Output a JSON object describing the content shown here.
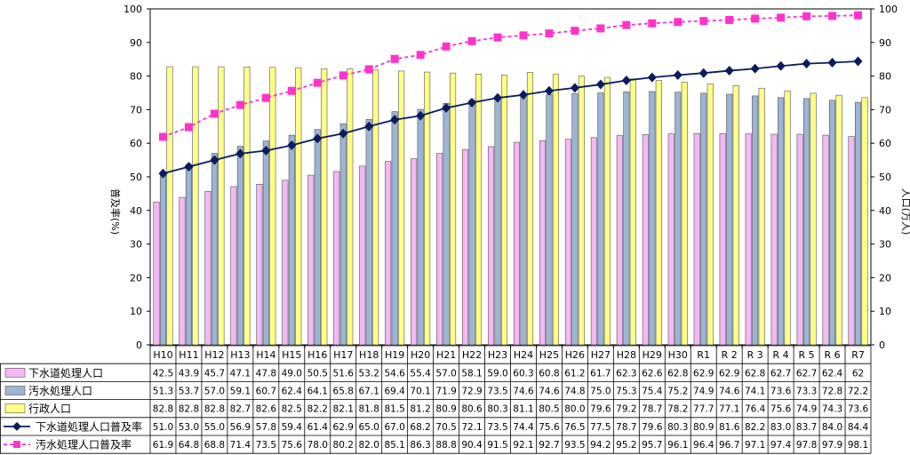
{
  "chart_data": {
    "type": "bar",
    "title": "",
    "xlabel": "",
    "ylabel": "普及率(%)",
    "y2label": "人口(万人)",
    "ylim": [
      0,
      100
    ],
    "y2lim": [
      0,
      100
    ],
    "yticks": [
      0,
      10,
      20,
      30,
      40,
      50,
      60,
      70,
      80,
      90,
      100
    ],
    "grid": false,
    "legend": "data-table",
    "categories": [
      "H10",
      "H11",
      "H12",
      "H13",
      "H14",
      "H15",
      "H16",
      "H17",
      "H18",
      "H19",
      "H20",
      "H21",
      "H22",
      "H23",
      "H24",
      "H25",
      "H26",
      "H27",
      "H28",
      "H29",
      "H30",
      "R1",
      "R 2",
      "R 3",
      "R 4",
      "R 5",
      "R 6",
      "R7"
    ],
    "series": [
      {
        "name": "下水道処理人口",
        "type": "bar",
        "axis": "right",
        "color": "#f4b8f4",
        "values": [
          42.5,
          43.9,
          45.7,
          47.1,
          47.8,
          49.0,
          50.5,
          51.6,
          53.2,
          54.6,
          55.4,
          57.0,
          58.1,
          59.0,
          60.3,
          60.8,
          61.2,
          61.7,
          62.3,
          62.6,
          62.8,
          62.9,
          62.9,
          62.8,
          62.7,
          62.7,
          62.4,
          62
        ]
      },
      {
        "name": "汚水処理人口",
        "type": "bar",
        "axis": "right",
        "color": "#9db5d4",
        "values": [
          51.3,
          53.7,
          57.0,
          59.1,
          60.7,
          62.4,
          64.1,
          65.8,
          67.1,
          69.4,
          70.1,
          71.9,
          72.9,
          73.5,
          74.6,
          74.6,
          74.8,
          75.0,
          75.3,
          75.4,
          75.2,
          74.9,
          74.6,
          74.1,
          73.6,
          73.3,
          72.8,
          72.2
        ]
      },
      {
        "name": "行政人口",
        "type": "bar",
        "axis": "right",
        "color": "#ffff88",
        "values": [
          82.8,
          82.8,
          82.8,
          82.7,
          82.6,
          82.5,
          82.2,
          82.1,
          81.8,
          81.5,
          81.2,
          80.9,
          80.6,
          80.3,
          81.1,
          80.5,
          80.0,
          79.6,
          79.2,
          78.7,
          78.2,
          77.7,
          77.1,
          76.4,
          75.6,
          74.9,
          74.3,
          73.6
        ]
      },
      {
        "name": "下水道処理人口普及率",
        "type": "line",
        "axis": "left",
        "color": "#0b1b5c",
        "values": [
          51.0,
          53.0,
          55.0,
          56.9,
          57.8,
          59.4,
          61.4,
          62.9,
          65.0,
          67.0,
          68.2,
          70.5,
          72.1,
          73.5,
          74.4,
          75.6,
          76.5,
          77.5,
          78.7,
          79.6,
          80.3,
          80.9,
          81.6,
          82.2,
          83.0,
          83.7,
          84.0,
          84.4
        ]
      },
      {
        "name": "汚水処理人口普及率",
        "type": "line",
        "axis": "left",
        "color": "#ff33cc",
        "dashed": true,
        "values": [
          61.9,
          64.8,
          68.8,
          71.4,
          73.5,
          75.6,
          78.0,
          80.2,
          82.0,
          85.1,
          86.3,
          88.8,
          90.4,
          91.5,
          92.1,
          92.7,
          93.5,
          94.2,
          95.2,
          95.7,
          96.1,
          96.4,
          96.7,
          97.1,
          97.4,
          97.8,
          97.9,
          98.1
        ]
      }
    ]
  }
}
